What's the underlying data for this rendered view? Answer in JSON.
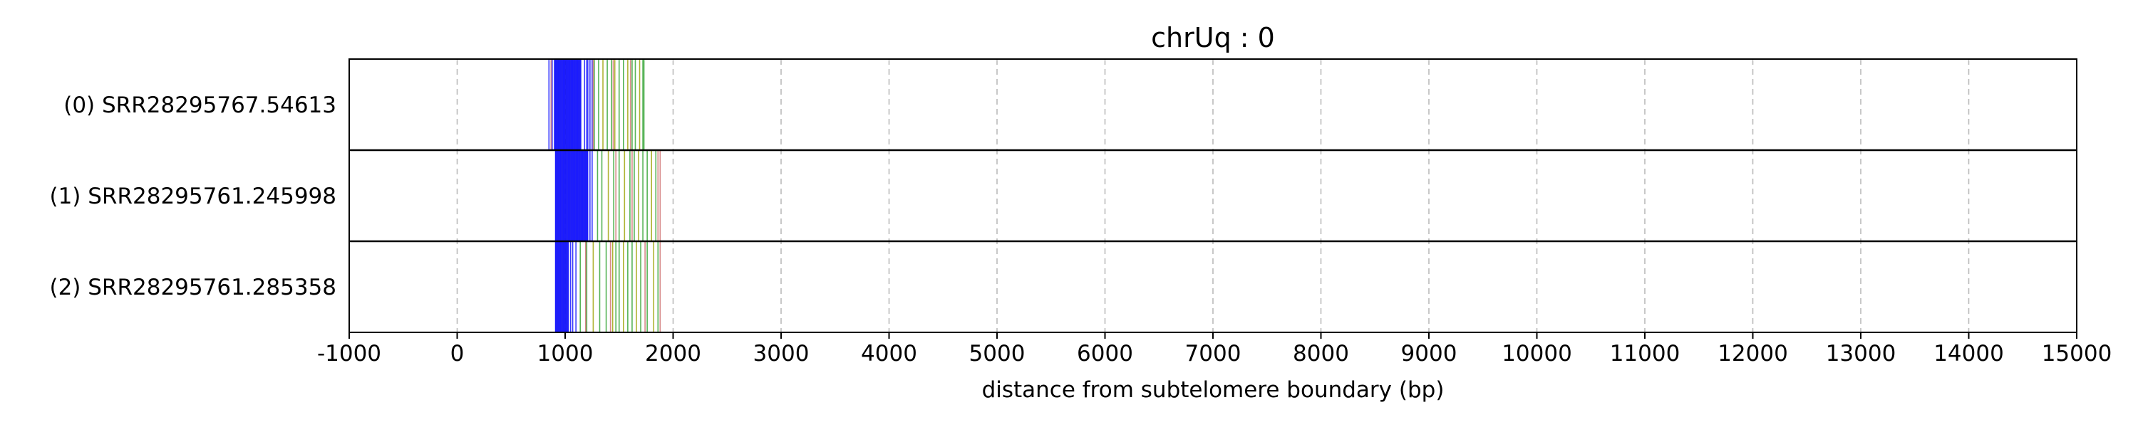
{
  "chart_data": {
    "type": "event-track",
    "title": "chrUq : 0",
    "xlabel": "distance from subtelomere boundary (bp)",
    "ylabel": "",
    "xlim": [
      -1000,
      15000
    ],
    "xticks": [
      "-1000",
      "0",
      "1000",
      "2000",
      "3000",
      "4000",
      "5000",
      "6000",
      "7000",
      "8000",
      "9000",
      "10000",
      "11000",
      "12000",
      "13000",
      "14000",
      "15000"
    ],
    "xtick_values": [
      -1000,
      0,
      1000,
      2000,
      3000,
      4000,
      5000,
      6000,
      7000,
      8000,
      9000,
      10000,
      11000,
      12000,
      13000,
      14000,
      15000
    ],
    "grid": "vertical dashed",
    "colors": {
      "dense": "#0000ee",
      "mark_green": "#2ca02c",
      "mark_olive": "#9aa000",
      "mark_pink": "#d88a8a",
      "grid": "#bbbbbb"
    },
    "rows": [
      {
        "label": "(0) SRR28295767.54613",
        "dense_start": 900,
        "dense_end": 1150,
        "blue_marks": [
          850,
          880,
          1180,
          1200,
          1210,
          1230,
          1250
        ],
        "green_marks": [
          1270,
          1310,
          1350,
          1390,
          1430,
          1460,
          1500,
          1540,
          1580,
          1620,
          1650,
          1690,
          1720,
          1730
        ],
        "pink_marks": [
          870,
          1260,
          1445,
          1605
        ]
      },
      {
        "label": "(1) SRR28295761.245998",
        "dense_start": 910,
        "dense_end": 1210,
        "blue_marks": [
          1230,
          1250
        ],
        "green_marks": [
          1300,
          1340,
          1400,
          1450,
          1500,
          1550,
          1600,
          1640,
          1680,
          1720,
          1760,
          1800,
          1840
        ],
        "pink_marks": [
          1470,
          1620,
          1860,
          1880
        ]
      },
      {
        "label": "(2) SRR28295761.285358",
        "dense_start": 910,
        "dense_end": 1030,
        "blue_marks": [
          1050,
          1070,
          1100
        ],
        "green_marks": [
          1140,
          1200,
          1260,
          1320,
          1380,
          1440,
          1470,
          1500,
          1540,
          1580,
          1620,
          1660,
          1700,
          1760,
          1820,
          1860
        ],
        "pink_marks": [
          1190,
          1420,
          1740,
          1880
        ]
      }
    ]
  }
}
